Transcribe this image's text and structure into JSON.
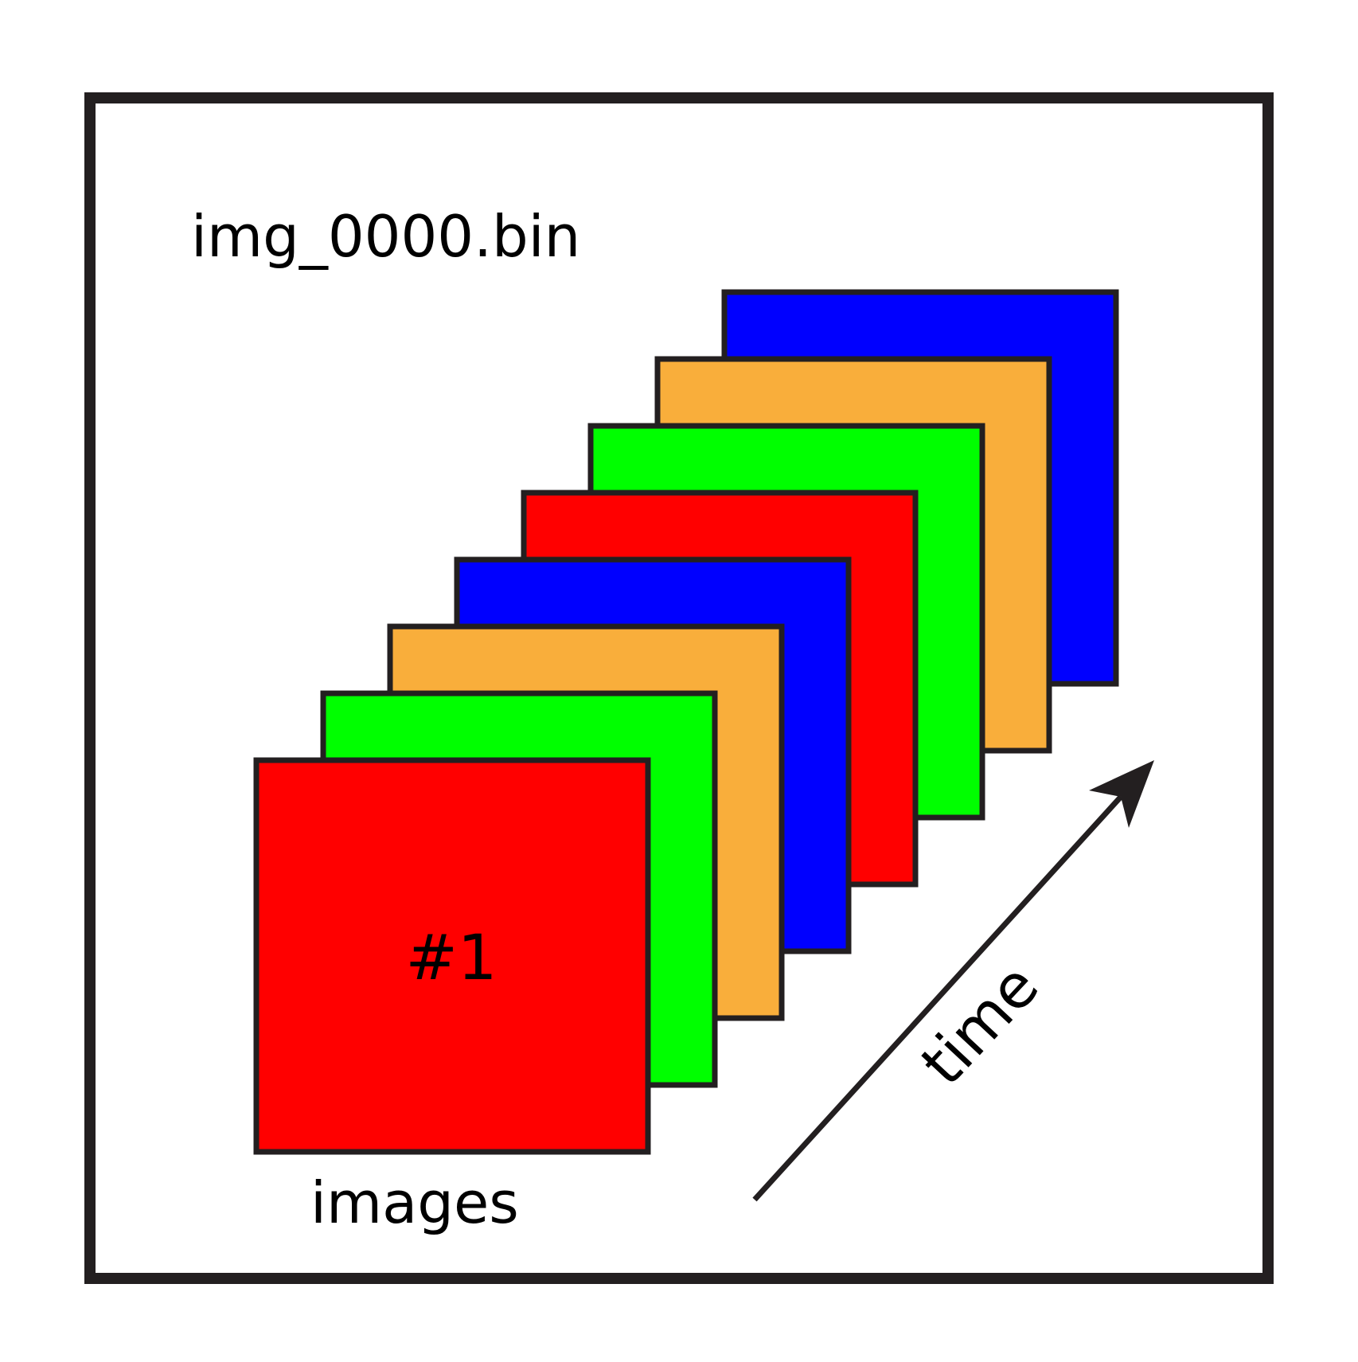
{
  "diagram": {
    "file_label": "img_0000.bin",
    "first_frame_label": "#1",
    "stack_label": "images",
    "axis_label": "time",
    "colors": {
      "border": "#231f20",
      "red": "#ff0000",
      "green": "#00ff00",
      "orange": "#f9ae3b",
      "blue": "#0000ff"
    },
    "frames": [
      {
        "color_name": "blue"
      },
      {
        "color_name": "orange"
      },
      {
        "color_name": "green"
      },
      {
        "color_name": "red"
      },
      {
        "color_name": "blue"
      },
      {
        "color_name": "orange"
      },
      {
        "color_name": "green"
      },
      {
        "color_name": "red"
      }
    ]
  }
}
